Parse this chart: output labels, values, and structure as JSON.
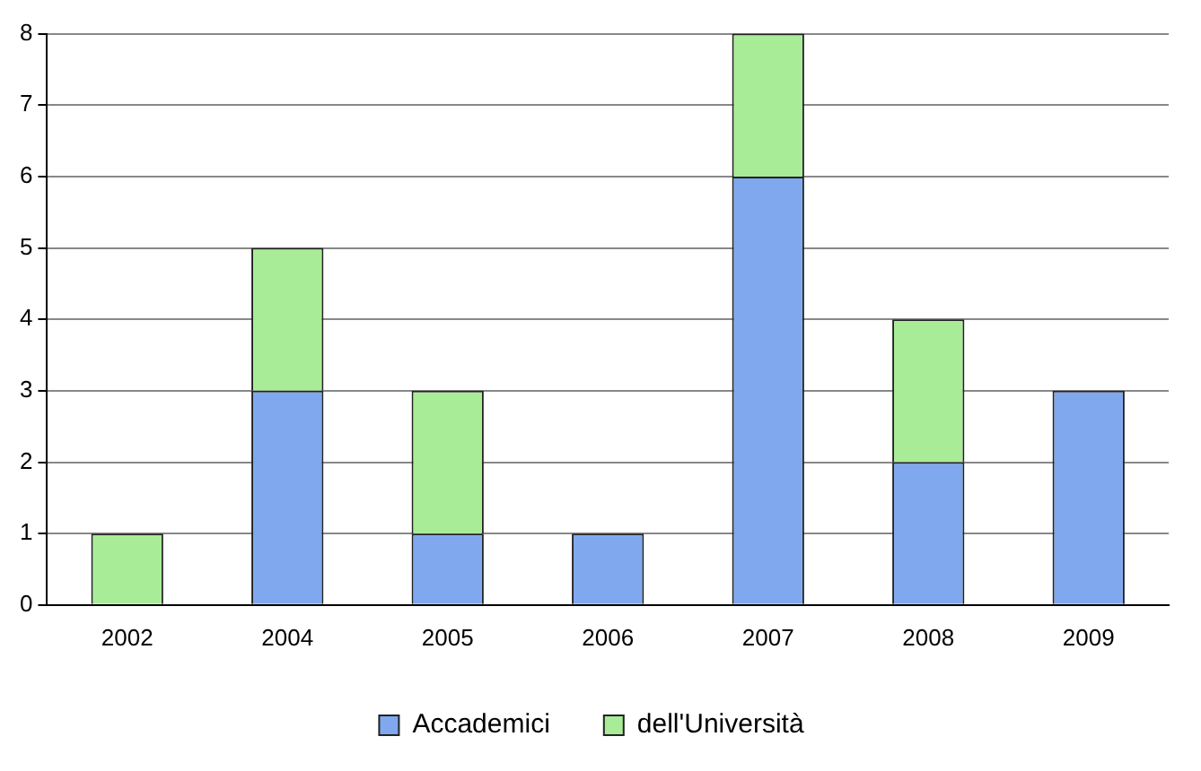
{
  "chart_data": {
    "type": "bar",
    "stacked": true,
    "categories": [
      "2002",
      "2004",
      "2005",
      "2006",
      "2007",
      "2008",
      "2009"
    ],
    "series": [
      {
        "name": "Accademici",
        "color": "#7fa8ee",
        "values": [
          0,
          3,
          1,
          1,
          6,
          2,
          3
        ]
      },
      {
        "name": "dell'Università",
        "color": "#a8ec98",
        "values": [
          1,
          2,
          2,
          0,
          2,
          2,
          0
        ]
      }
    ],
    "ylim": [
      0,
      8
    ],
    "yticks": [
      0,
      1,
      2,
      3,
      4,
      5,
      6,
      7,
      8
    ],
    "grid": "y",
    "legend": "bottom"
  }
}
